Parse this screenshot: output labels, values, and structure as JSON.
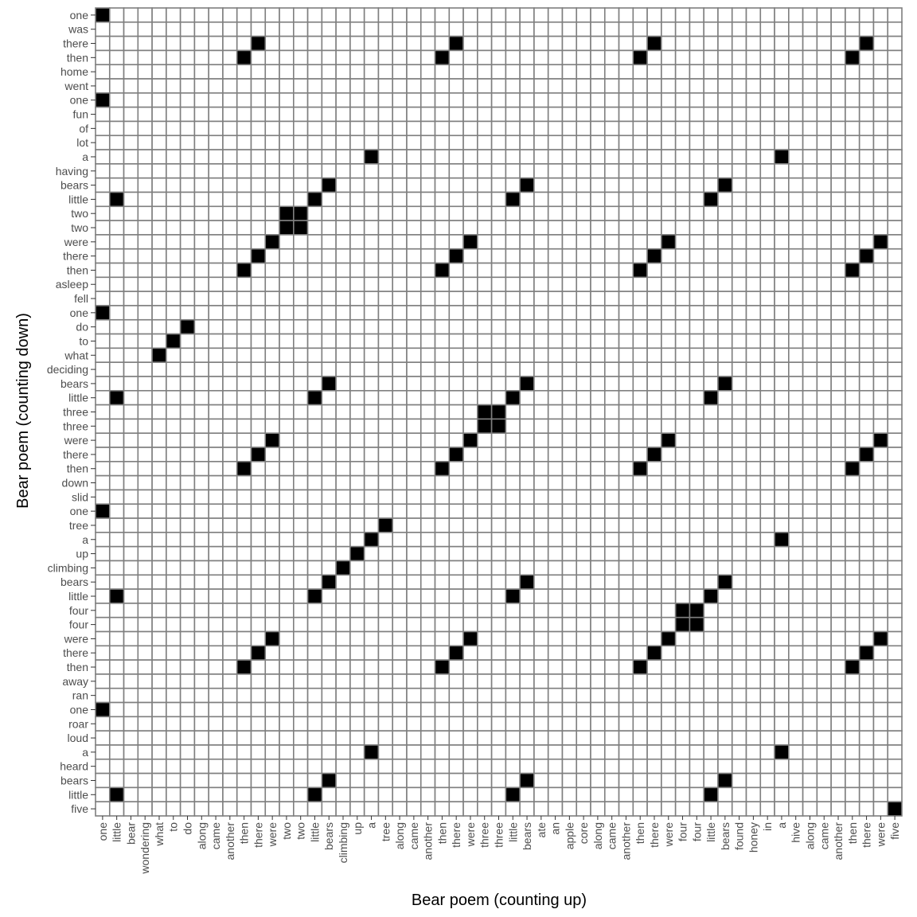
{
  "chart_data": {
    "type": "heatmap",
    "xlabel": "Bear poem (counting up)",
    "ylabel": "Bear poem (counting down)",
    "x_words": [
      "one",
      "little",
      "bear",
      "wondering",
      "what",
      "to",
      "do",
      "along",
      "came",
      "another",
      "then",
      "there",
      "were",
      "two",
      "two",
      "little",
      "bears",
      "climbing",
      "up",
      "a",
      "tree",
      "along",
      "came",
      "another",
      "then",
      "there",
      "were",
      "three",
      "three",
      "little",
      "bears",
      "ate",
      "an",
      "apple",
      "core",
      "along",
      "came",
      "another",
      "then",
      "there",
      "were",
      "four",
      "four",
      "little",
      "bears",
      "found",
      "honey",
      "in",
      "a",
      "hive",
      "along",
      "came",
      "another",
      "then",
      "there",
      "were",
      "five"
    ],
    "y_words": [
      "one",
      "was",
      "there",
      "then",
      "home",
      "went",
      "one",
      "fun",
      "of",
      "lot",
      "a",
      "having",
      "bears",
      "little",
      "two",
      "two",
      "were",
      "there",
      "then",
      "asleep",
      "fell",
      "one",
      "do",
      "to",
      "what",
      "deciding",
      "bears",
      "little",
      "three",
      "three",
      "were",
      "there",
      "then",
      "down",
      "slid",
      "one",
      "tree",
      "a",
      "up",
      "climbing",
      "bears",
      "little",
      "four",
      "four",
      "were",
      "there",
      "then",
      "away",
      "ran",
      "one",
      "roar",
      "loud",
      "a",
      "heard",
      "bears",
      "little",
      "five"
    ],
    "match_rule": "a cell is filled where the x word equals the y word",
    "filled_color": "#000000",
    "empty_color": "#ffffff",
    "grid_color": "#7f7f7f"
  }
}
